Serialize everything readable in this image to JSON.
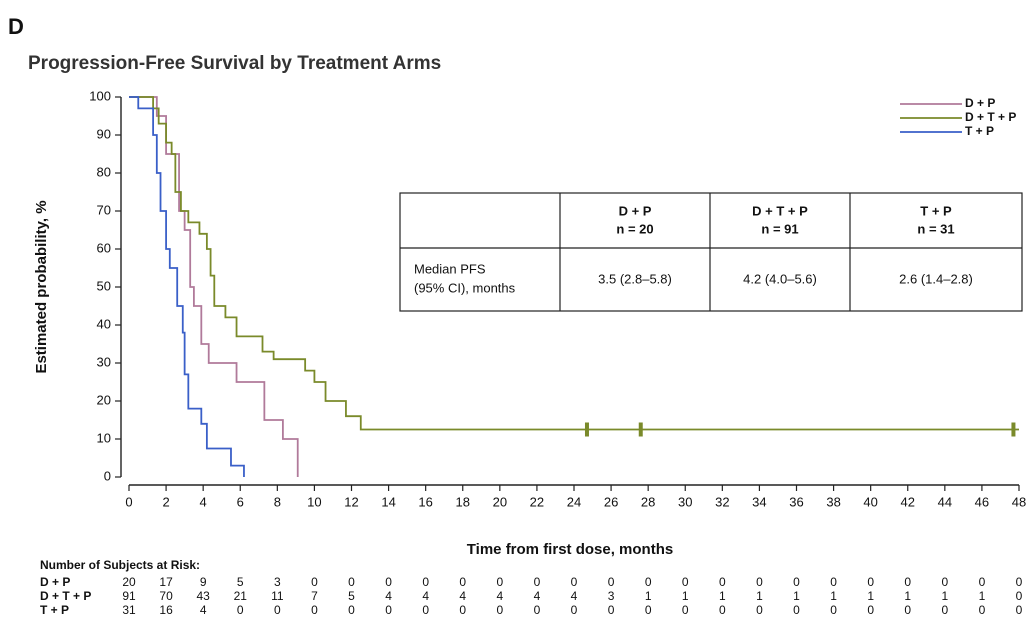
{
  "chart_data": {
    "type": "step",
    "panel": "D",
    "title": "Progression-Free Survival by Treatment Arms",
    "x_label": "Time from first dose, months",
    "y_label": "Estimated probability, %",
    "xlim": [
      0,
      48
    ],
    "ylim": [
      0,
      100
    ],
    "xticks": [
      0,
      2,
      4,
      6,
      8,
      10,
      12,
      14,
      16,
      18,
      20,
      22,
      24,
      26,
      28,
      30,
      32,
      34,
      36,
      38,
      40,
      42,
      44,
      46,
      48
    ],
    "yticks": [
      0,
      10,
      20,
      30,
      40,
      50,
      60,
      70,
      80,
      90,
      100
    ],
    "series": [
      {
        "name": "D + P",
        "color": "#b07a9a",
        "x": [
          0,
          1.5,
          2,
          2.7,
          3,
          3.3,
          3.5,
          3.9,
          4.3,
          5.8,
          7.3,
          8.3,
          9.1
        ],
        "values": [
          100,
          95,
          85,
          70,
          65,
          50,
          45,
          35,
          30,
          25,
          15,
          10,
          0
        ]
      },
      {
        "name": "D + T + P",
        "color": "#7a8a2a",
        "x": [
          0,
          1.3,
          1.6,
          2,
          2.3,
          2.5,
          2.8,
          3.2,
          3.8,
          4.2,
          4.4,
          4.6,
          5.2,
          5.8,
          7.2,
          7.8,
          9.5,
          10,
          10.6,
          11.7,
          12.5,
          48
        ],
        "values": [
          100,
          97,
          93,
          88,
          85,
          75,
          70,
          67,
          64,
          60,
          53,
          45,
          42,
          37,
          33,
          31,
          28,
          25,
          20,
          16,
          12.5,
          12.5
        ],
        "censored_x": [
          24.7,
          27.6,
          47.7
        ],
        "censored_values": [
          12.5,
          12.5,
          12.5
        ]
      },
      {
        "name": "T + P",
        "color": "#3a5fc8",
        "x": [
          0,
          0.5,
          1.3,
          1.5,
          1.7,
          2,
          2.2,
          2.6,
          2.9,
          3,
          3.2,
          3.9,
          4.2,
          5.5,
          6.2
        ],
        "values": [
          100,
          97,
          90,
          80,
          70,
          60,
          55,
          45,
          38,
          27,
          18,
          14,
          7.5,
          3,
          0
        ]
      }
    ],
    "summary_table": {
      "columns": [
        {
          "name": "D + P",
          "n": "n = 20"
        },
        {
          "name": "D + T + P",
          "n": "n = 91"
        },
        {
          "name": "T + P",
          "n": "n = 31"
        }
      ],
      "row_label": [
        "Median PFS",
        "(95% CI), months"
      ],
      "cells": [
        "3.5 (2.8–5.8)",
        "4.2 (4.0–5.6)",
        "2.6 (1.4–2.8)"
      ]
    },
    "risk_table": {
      "title": "Number of Subjects at Risk:",
      "rows": [
        {
          "label": "D + P",
          "values": [
            20,
            17,
            9,
            5,
            3,
            0,
            0,
            0,
            0,
            0,
            0,
            0,
            0,
            0,
            0,
            0,
            0,
            0,
            0,
            0,
            0,
            0,
            0,
            0,
            0
          ]
        },
        {
          "label": "D + T + P",
          "values": [
            91,
            70,
            43,
            21,
            11,
            7,
            5,
            4,
            4,
            4,
            4,
            4,
            4,
            3,
            1,
            1,
            1,
            1,
            1,
            1,
            1,
            1,
            1,
            1,
            0
          ]
        },
        {
          "label": "T + P",
          "values": [
            31,
            16,
            4,
            0,
            0,
            0,
            0,
            0,
            0,
            0,
            0,
            0,
            0,
            0,
            0,
            0,
            0,
            0,
            0,
            0,
            0,
            0,
            0,
            0,
            0
          ]
        }
      ]
    }
  }
}
